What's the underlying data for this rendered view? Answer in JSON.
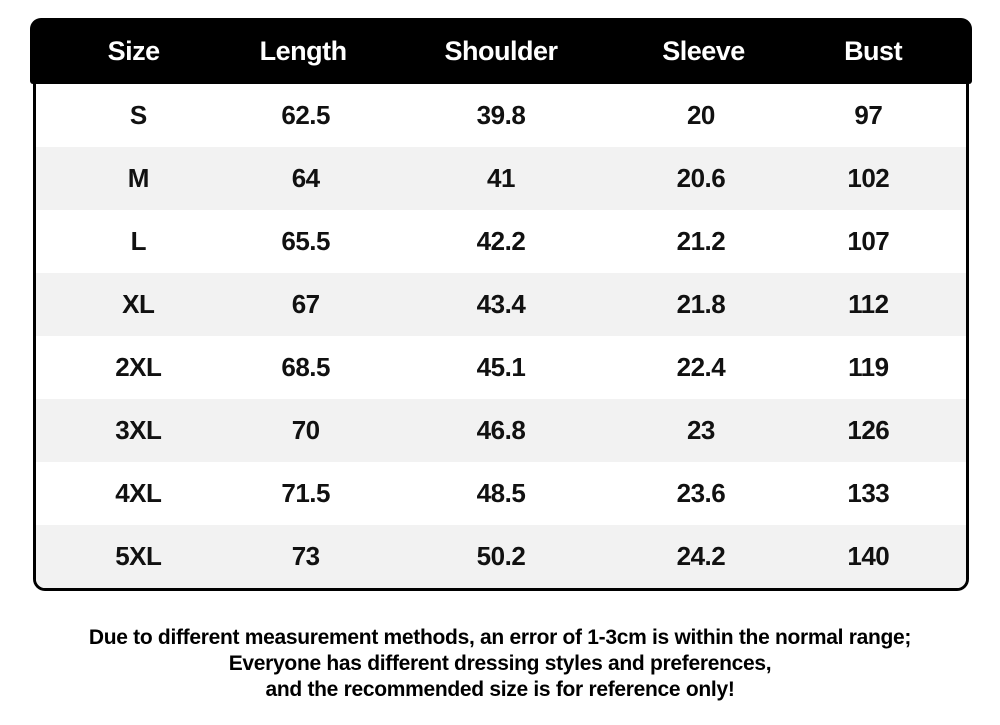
{
  "chart_data": {
    "type": "table",
    "columns": [
      "Size",
      "Length",
      "Shoulder",
      "Sleeve",
      "Bust"
    ],
    "rows": [
      [
        "S",
        "62.5",
        "39.8",
        "20",
        "97"
      ],
      [
        "M",
        "64",
        "41",
        "20.6",
        "102"
      ],
      [
        "L",
        "65.5",
        "42.2",
        "21.2",
        "107"
      ],
      [
        "XL",
        "67",
        "43.4",
        "21.8",
        "112"
      ],
      [
        "2XL",
        "68.5",
        "45.1",
        "22.4",
        "119"
      ],
      [
        "3XL",
        "70",
        "46.8",
        "23",
        "126"
      ],
      [
        "4XL",
        "71.5",
        "48.5",
        "23.6",
        "133"
      ],
      [
        "5XL",
        "73",
        "50.2",
        "24.2",
        "140"
      ]
    ],
    "notes": [
      "Due to different measurement methods, an error of 1-3cm is within the normal range;",
      "Everyone has different dressing styles and preferences,",
      "and the recommended size is for reference only!"
    ],
    "layout_hints": {
      "alternating_rows": true,
      "first_data_row_background": "white"
    }
  },
  "colors": {
    "page_bg": "#ffffff",
    "header_bg": "#000000",
    "header_text": "#ffffff",
    "row_bg": "#ffffff",
    "row_alt_bg": "#f2f2f2",
    "border": "#000000",
    "body_text": "#111111"
  }
}
